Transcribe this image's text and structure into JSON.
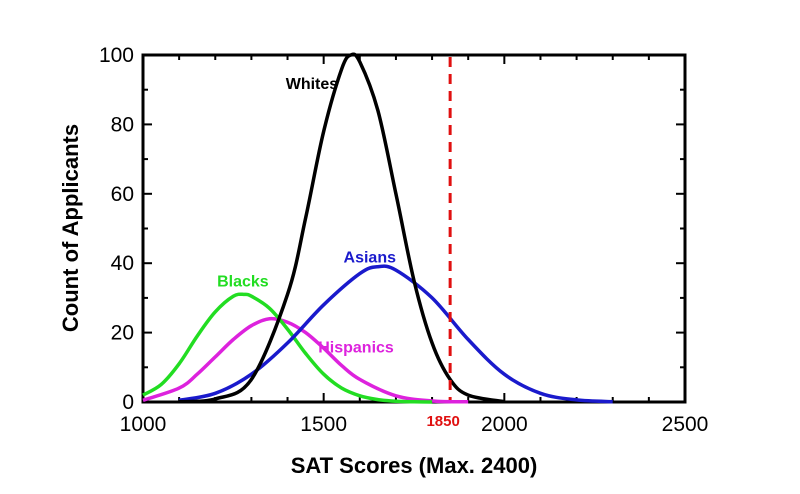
{
  "chart_data": {
    "type": "line",
    "xlabel": "SAT Scores (Max. 2400)",
    "ylabel": "Count of Applicants",
    "xlim": [
      1000,
      2500
    ],
    "ylim": [
      0,
      100
    ],
    "xticks": [
      1000,
      1500,
      2000,
      2500
    ],
    "yticks": [
      0,
      20,
      40,
      60,
      80,
      100
    ],
    "grid": false,
    "series": [
      {
        "name": "Whites",
        "color": "#000000",
        "x": [
          1100,
          1200,
          1300,
          1400,
          1450,
          1500,
          1550,
          1575,
          1600,
          1650,
          1700,
          1750,
          1800,
          1850,
          1900,
          2000
        ],
        "y": [
          0.1,
          0.9,
          6.5,
          31,
          53,
          78,
          96,
          100,
          98,
          84,
          60,
          35,
          17,
          6.5,
          2,
          0.1
        ]
      },
      {
        "name": "Asians",
        "color": "#1a1acc",
        "x": [
          1100,
          1200,
          1300,
          1400,
          1500,
          1600,
          1650,
          1700,
          1800,
          1900,
          2000,
          2100,
          2200,
          2300
        ],
        "y": [
          0.5,
          2.5,
          8,
          17,
          28,
          37,
          39,
          38,
          30,
          18,
          8,
          2.5,
          0.6,
          0.1
        ]
      },
      {
        "name": "Blacks",
        "color": "#22dd22",
        "x": [
          1000,
          1050,
          1100,
          1150,
          1200,
          1250,
          1280,
          1300,
          1350,
          1400,
          1450,
          1500,
          1550,
          1600,
          1650,
          1700,
          1750,
          1800
        ],
        "y": [
          2,
          5,
          11,
          19,
          26,
          30.5,
          31,
          30.5,
          27,
          21,
          14,
          8,
          4,
          1.8,
          0.7,
          0.2,
          0.05,
          0
        ]
      },
      {
        "name": "Hispanics",
        "color": "#dd22dd",
        "x": [
          1000,
          1100,
          1150,
          1200,
          1250,
          1300,
          1350,
          1400,
          1450,
          1500,
          1550,
          1600,
          1700,
          1800,
          1900
        ],
        "y": [
          0.5,
          4,
          8,
          13,
          18,
          22,
          24,
          23,
          20,
          15.5,
          10.5,
          6.5,
          1.8,
          0.3,
          0.05
        ]
      }
    ],
    "annotations": [
      {
        "type": "vline",
        "x": 1850,
        "label": "1850",
        "color": "#e01010",
        "style": "dashed"
      }
    ]
  }
}
